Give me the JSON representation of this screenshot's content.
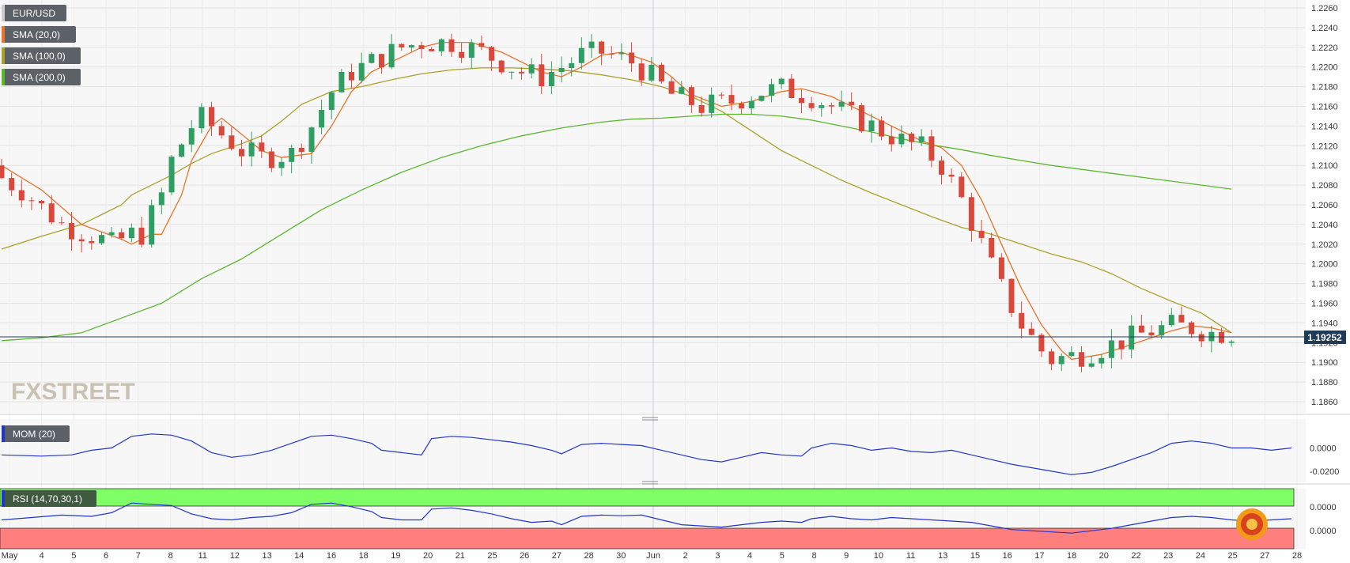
{
  "chart_data": {
    "type": "candlestick",
    "symbol": "EUR/USD",
    "last_price": "1.19252",
    "price_axis": {
      "ylim": [
        1.1845,
        1.2265
      ],
      "ticks": [
        "1.2260",
        "1.2240",
        "1.2220",
        "1.2200",
        "1.2180",
        "1.2160",
        "1.2140",
        "1.2120",
        "1.2100",
        "1.2080",
        "1.2060",
        "1.2040",
        "1.2020",
        "1.2000",
        "1.1980",
        "1.1960",
        "1.1940",
        "1.1920",
        "1.1900",
        "1.1880",
        "1.1860"
      ]
    },
    "x_axis": {
      "labels": [
        "May",
        "4",
        "5",
        "6",
        "7",
        "8",
        "11",
        "12",
        "13",
        "14",
        "16",
        "18",
        "19",
        "20",
        "21",
        "25",
        "26",
        "27",
        "28",
        "30",
        "Jun",
        "2",
        "3",
        "4",
        "5",
        "8",
        "9",
        "10",
        "11",
        "13",
        "15",
        "16",
        "17",
        "18",
        "20",
        "22",
        "23",
        "24",
        "25",
        "27",
        "28"
      ],
      "range": [
        "2021-04-30",
        "2021-06-28"
      ]
    },
    "grid": true,
    "legend_placement": "top-left",
    "indicators": [
      {
        "name": "SMA (20,0)",
        "color": "#e8732a"
      },
      {
        "name": "SMA (100,0)",
        "color": "#a9a22a"
      },
      {
        "name": "SMA (200,0)",
        "color": "#5ab72e"
      }
    ],
    "sma20": [
      [
        0,
        1.21
      ],
      [
        4,
        1.2075
      ],
      [
        8,
        1.204
      ],
      [
        12,
        1.2025
      ],
      [
        13,
        1.202
      ],
      [
        15,
        1.203
      ],
      [
        16,
        1.203
      ],
      [
        18,
        1.207
      ],
      [
        19,
        1.2105
      ],
      [
        21,
        1.214
      ],
      [
        22,
        1.2148
      ],
      [
        23,
        1.214
      ],
      [
        26,
        1.2115
      ],
      [
        28,
        1.2108
      ],
      [
        31,
        1.2112
      ],
      [
        33,
        1.214
      ],
      [
        35,
        1.2175
      ],
      [
        37,
        1.2195
      ],
      [
        40,
        1.221
      ],
      [
        42,
        1.222
      ],
      [
        44,
        1.2225
      ],
      [
        47,
        1.2225
      ],
      [
        50,
        1.2215
      ],
      [
        54,
        1.2195
      ],
      [
        56,
        1.219
      ],
      [
        58,
        1.22
      ],
      [
        60,
        1.2212
      ],
      [
        62,
        1.2215
      ],
      [
        65,
        1.2205
      ],
      [
        67,
        1.219
      ],
      [
        69,
        1.2172
      ],
      [
        72,
        1.216
      ],
      [
        75,
        1.2165
      ],
      [
        78,
        1.2175
      ],
      [
        80,
        1.2178
      ],
      [
        83,
        1.217
      ],
      [
        86,
        1.2155
      ],
      [
        89,
        1.214
      ],
      [
        92,
        1.2125
      ],
      [
        94,
        1.2118
      ],
      [
        96,
        1.21
      ],
      [
        98,
        1.2065
      ],
      [
        100,
        1.202
      ],
      [
        102,
        1.1975
      ],
      [
        104,
        1.1938
      ],
      [
        106,
        1.1912
      ],
      [
        107,
        1.1903
      ],
      [
        110,
        1.1908
      ],
      [
        113,
        1.1918
      ],
      [
        115,
        1.1925
      ],
      [
        117,
        1.1932
      ],
      [
        119,
        1.1937
      ],
      [
        121,
        1.1935
      ],
      [
        123,
        1.193
      ]
    ],
    "sma100": [
      [
        0,
        1.2015
      ],
      [
        4,
        1.2028
      ],
      [
        8,
        1.204
      ],
      [
        12,
        1.206
      ],
      [
        13,
        1.207
      ],
      [
        15,
        1.208
      ],
      [
        17,
        1.209
      ],
      [
        19,
        1.2102
      ],
      [
        21,
        1.2112
      ],
      [
        24,
        1.2122
      ],
      [
        26,
        1.213
      ],
      [
        28,
        1.2145
      ],
      [
        30,
        1.2162
      ],
      [
        33,
        1.2175
      ],
      [
        36,
        1.218
      ],
      [
        39,
        1.2187
      ],
      [
        42,
        1.2193
      ],
      [
        45,
        1.2197
      ],
      [
        48,
        1.2199
      ],
      [
        51,
        1.2199
      ],
      [
        54,
        1.2198
      ],
      [
        57,
        1.2196
      ],
      [
        60,
        1.2192
      ],
      [
        63,
        1.2187
      ],
      [
        66,
        1.218
      ],
      [
        69,
        1.217
      ],
      [
        72,
        1.2155
      ],
      [
        75,
        1.2135
      ],
      [
        78,
        1.2115
      ],
      [
        81,
        1.21
      ],
      [
        84,
        1.2085
      ],
      [
        87,
        1.2072
      ],
      [
        90,
        1.206
      ],
      [
        93,
        1.2048
      ],
      [
        96,
        1.2037
      ],
      [
        99,
        1.203
      ],
      [
        102,
        1.202
      ],
      [
        105,
        1.201
      ],
      [
        108,
        1.2002
      ],
      [
        111,
        1.199
      ],
      [
        114,
        1.1975
      ],
      [
        117,
        1.1962
      ],
      [
        120,
        1.195
      ],
      [
        123,
        1.193
      ]
    ],
    "sma200": [
      [
        0,
        1.1922
      ],
      [
        4,
        1.1925
      ],
      [
        8,
        1.193
      ],
      [
        12,
        1.1945
      ],
      [
        16,
        1.196
      ],
      [
        20,
        1.1985
      ],
      [
        24,
        1.2005
      ],
      [
        28,
        1.203
      ],
      [
        32,
        1.2055
      ],
      [
        36,
        1.2075
      ],
      [
        40,
        1.2093
      ],
      [
        44,
        1.2108
      ],
      [
        48,
        1.212
      ],
      [
        52,
        1.213
      ],
      [
        56,
        1.2138
      ],
      [
        60,
        1.2144
      ],
      [
        63,
        1.2147
      ],
      [
        66,
        1.2148
      ],
      [
        69,
        1.215
      ],
      [
        72,
        1.2152
      ],
      [
        75,
        1.2152
      ],
      [
        78,
        1.215
      ],
      [
        81,
        1.2146
      ],
      [
        84,
        1.214
      ],
      [
        87,
        1.2134
      ],
      [
        90,
        1.2127
      ],
      [
        93,
        1.2121
      ],
      [
        96,
        1.2116
      ],
      [
        99,
        1.211
      ],
      [
        102,
        1.2105
      ],
      [
        105,
        1.21
      ],
      [
        108,
        1.2096
      ],
      [
        111,
        1.2092
      ],
      [
        114,
        1.2088
      ],
      [
        117,
        1.2084
      ],
      [
        120,
        1.208
      ],
      [
        123,
        1.2076
      ]
    ],
    "momentum": {
      "name": "MOM (20)",
      "ticks": [
        "0.0000",
        "-0.0200"
      ],
      "ylim": [
        -0.0255,
        0.018
      ],
      "values": [
        [
          0,
          -0.006
        ],
        [
          4,
          -0.007
        ],
        [
          7,
          -0.006
        ],
        [
          9,
          -0.002
        ],
        [
          11,
          0.0
        ],
        [
          13,
          0.01
        ],
        [
          15,
          0.012
        ],
        [
          17,
          0.011
        ],
        [
          19,
          0.006
        ],
        [
          21,
          -0.004
        ],
        [
          23,
          -0.008
        ],
        [
          25,
          -0.006
        ],
        [
          27,
          -0.002
        ],
        [
          29,
          0.004
        ],
        [
          31,
          0.01
        ],
        [
          33,
          0.011
        ],
        [
          35,
          0.008
        ],
        [
          37,
          0.004
        ],
        [
          38,
          -0.002
        ],
        [
          40,
          -0.004
        ],
        [
          42,
          -0.006
        ],
        [
          43,
          0.008
        ],
        [
          45,
          0.01
        ],
        [
          47,
          0.009
        ],
        [
          49,
          0.007
        ],
        [
          51,
          0.005
        ],
        [
          53,
          0.002
        ],
        [
          55,
          -0.002
        ],
        [
          56,
          -0.005
        ],
        [
          58,
          0.003
        ],
        [
          60,
          0.004
        ],
        [
          62,
          0.003
        ],
        [
          64,
          0.002
        ],
        [
          66,
          -0.002
        ],
        [
          68,
          -0.006
        ],
        [
          70,
          -0.01
        ],
        [
          72,
          -0.012
        ],
        [
          74,
          -0.008
        ],
        [
          76,
          -0.004
        ],
        [
          78,
          -0.006
        ],
        [
          80,
          -0.007
        ],
        [
          81,
          0.0
        ],
        [
          83,
          0.004
        ],
        [
          85,
          0.002
        ],
        [
          87,
          -0.002
        ],
        [
          89,
          0.0
        ],
        [
          91,
          -0.003
        ],
        [
          93,
          -0.004
        ],
        [
          95,
          -0.002
        ],
        [
          97,
          -0.006
        ],
        [
          99,
          -0.01
        ],
        [
          101,
          -0.014
        ],
        [
          103,
          -0.017
        ],
        [
          105,
          -0.02
        ],
        [
          107,
          -0.023
        ],
        [
          109,
          -0.021
        ],
        [
          111,
          -0.016
        ],
        [
          113,
          -0.01
        ],
        [
          115,
          -0.004
        ],
        [
          117,
          0.004
        ],
        [
          119,
          0.006
        ],
        [
          121,
          0.004
        ],
        [
          123,
          0.0
        ],
        [
          125,
          0.0
        ],
        [
          127,
          -0.002
        ],
        [
          129,
          0.0
        ]
      ]
    },
    "rsi": {
      "name": "RSI (14,70,30,1)",
      "ticks": [
        "0.0000",
        "0.0000"
      ],
      "overbought": 70,
      "oversold": 30,
      "ylim": [
        0,
        100
      ],
      "values": [
        [
          0,
          48
        ],
        [
          3,
          52
        ],
        [
          6,
          56
        ],
        [
          9,
          54
        ],
        [
          11,
          60
        ],
        [
          13,
          76
        ],
        [
          15,
          74
        ],
        [
          17,
          72
        ],
        [
          19,
          58
        ],
        [
          21,
          50
        ],
        [
          23,
          48
        ],
        [
          25,
          52
        ],
        [
          27,
          54
        ],
        [
          29,
          60
        ],
        [
          31,
          74
        ],
        [
          33,
          76
        ],
        [
          35,
          70
        ],
        [
          37,
          62
        ],
        [
          38,
          52
        ],
        [
          40,
          48
        ],
        [
          42,
          48
        ],
        [
          43,
          66
        ],
        [
          45,
          68
        ],
        [
          47,
          64
        ],
        [
          49,
          58
        ],
        [
          51,
          50
        ],
        [
          53,
          44
        ],
        [
          55,
          46
        ],
        [
          56,
          40
        ],
        [
          58,
          54
        ],
        [
          60,
          56
        ],
        [
          62,
          55
        ],
        [
          64,
          56
        ],
        [
          66,
          48
        ],
        [
          68,
          40
        ],
        [
          70,
          38
        ],
        [
          72,
          36
        ],
        [
          74,
          40
        ],
        [
          76,
          44
        ],
        [
          78,
          46
        ],
        [
          80,
          44
        ],
        [
          81,
          50
        ],
        [
          83,
          54
        ],
        [
          85,
          50
        ],
        [
          87,
          48
        ],
        [
          89,
          52
        ],
        [
          91,
          50
        ],
        [
          93,
          48
        ],
        [
          95,
          46
        ],
        [
          97,
          44
        ],
        [
          99,
          38
        ],
        [
          101,
          32
        ],
        [
          103,
          30
        ],
        [
          105,
          28
        ],
        [
          107,
          26
        ],
        [
          109,
          30
        ],
        [
          111,
          34
        ],
        [
          113,
          40
        ],
        [
          115,
          46
        ],
        [
          117,
          52
        ],
        [
          119,
          54
        ],
        [
          121,
          52
        ],
        [
          123,
          48
        ],
        [
          125,
          46
        ],
        [
          127,
          48
        ],
        [
          129,
          50
        ]
      ]
    }
  },
  "watermark": "FXSTREET"
}
